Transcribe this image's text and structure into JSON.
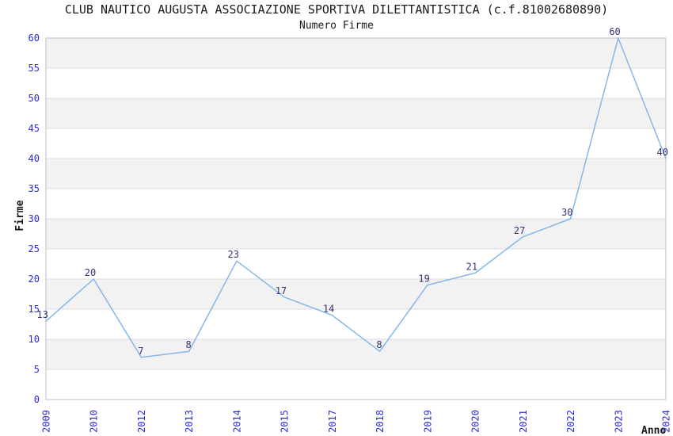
{
  "chart_data": {
    "type": "line",
    "title": "CLUB NAUTICO AUGUSTA ASSOCIAZIONE SPORTIVA DILETTANTISTICA (c.f.81002680890)",
    "subtitle": "Numero Firme",
    "xlabel": "Anno",
    "ylabel": "Firme",
    "categories": [
      "2009",
      "2010",
      "2012",
      "2013",
      "2014",
      "2015",
      "2017",
      "2018",
      "2019",
      "2020",
      "2021",
      "2022",
      "2023",
      "2024"
    ],
    "values": [
      13,
      20,
      7,
      8,
      23,
      17,
      14,
      8,
      19,
      21,
      27,
      30,
      60,
      40
    ],
    "ylim": [
      0,
      60
    ],
    "ytick_step": 5,
    "yticks": [
      0,
      5,
      10,
      15,
      20,
      25,
      30,
      35,
      40,
      45,
      50,
      55,
      60
    ],
    "grid": true,
    "legend": "none",
    "point_labels_visible": true,
    "banded_background": true,
    "colors": {
      "line": "#85b7e8",
      "tick_label": "#2a2ad8",
      "point_label": "#333377",
      "band": "#f2f2f2",
      "grid": "#dcdcdc",
      "border": "#c2c2c8",
      "text": "#1a1a1a",
      "background": "#ffffff"
    }
  }
}
